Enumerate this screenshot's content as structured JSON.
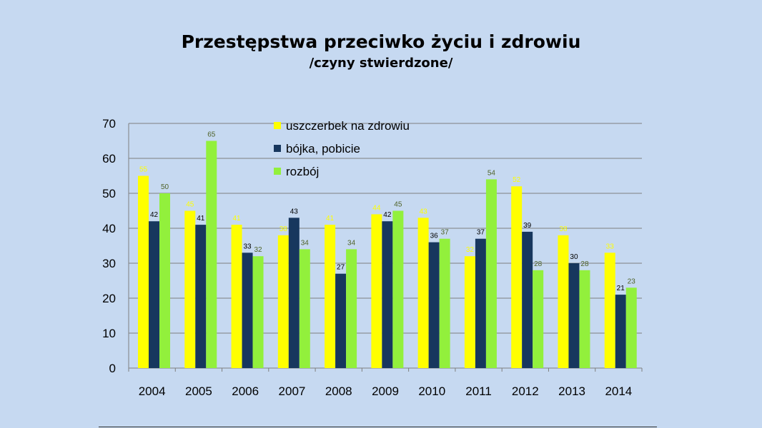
{
  "slide": {
    "title": "Przestępstwa przeciwko życiu i zdrowiu",
    "subtitle": "/czyny stwierdzone/"
  },
  "chart_data": {
    "type": "bar",
    "categories": [
      "2004",
      "2005",
      "2006",
      "2007",
      "2008",
      "2009",
      "2010",
      "2011",
      "2012",
      "2013",
      "2014"
    ],
    "series": [
      {
        "name": "uszczerbek na zdrowiu",
        "color": "#ffff00",
        "label_color": "#ffff00",
        "values": [
          55,
          45,
          41,
          38,
          41,
          44,
          43,
          32,
          52,
          38,
          33
        ]
      },
      {
        "name": "bójka, pobicie",
        "color": "#17375e",
        "label_color": "#000000",
        "values": [
          42,
          41,
          33,
          43,
          27,
          42,
          36,
          37,
          39,
          30,
          21
        ]
      },
      {
        "name": "rozbój",
        "color": "#92f03c",
        "label_color": "#4f6228",
        "values": [
          50,
          65,
          32,
          34,
          34,
          45,
          37,
          54,
          28,
          28,
          23
        ]
      }
    ],
    "yticks": [
      "0",
      "10",
      "20",
      "30",
      "40",
      "50",
      "60",
      "70"
    ],
    "ylim": [
      0,
      70
    ],
    "grid": true,
    "legend": "top-center"
  }
}
